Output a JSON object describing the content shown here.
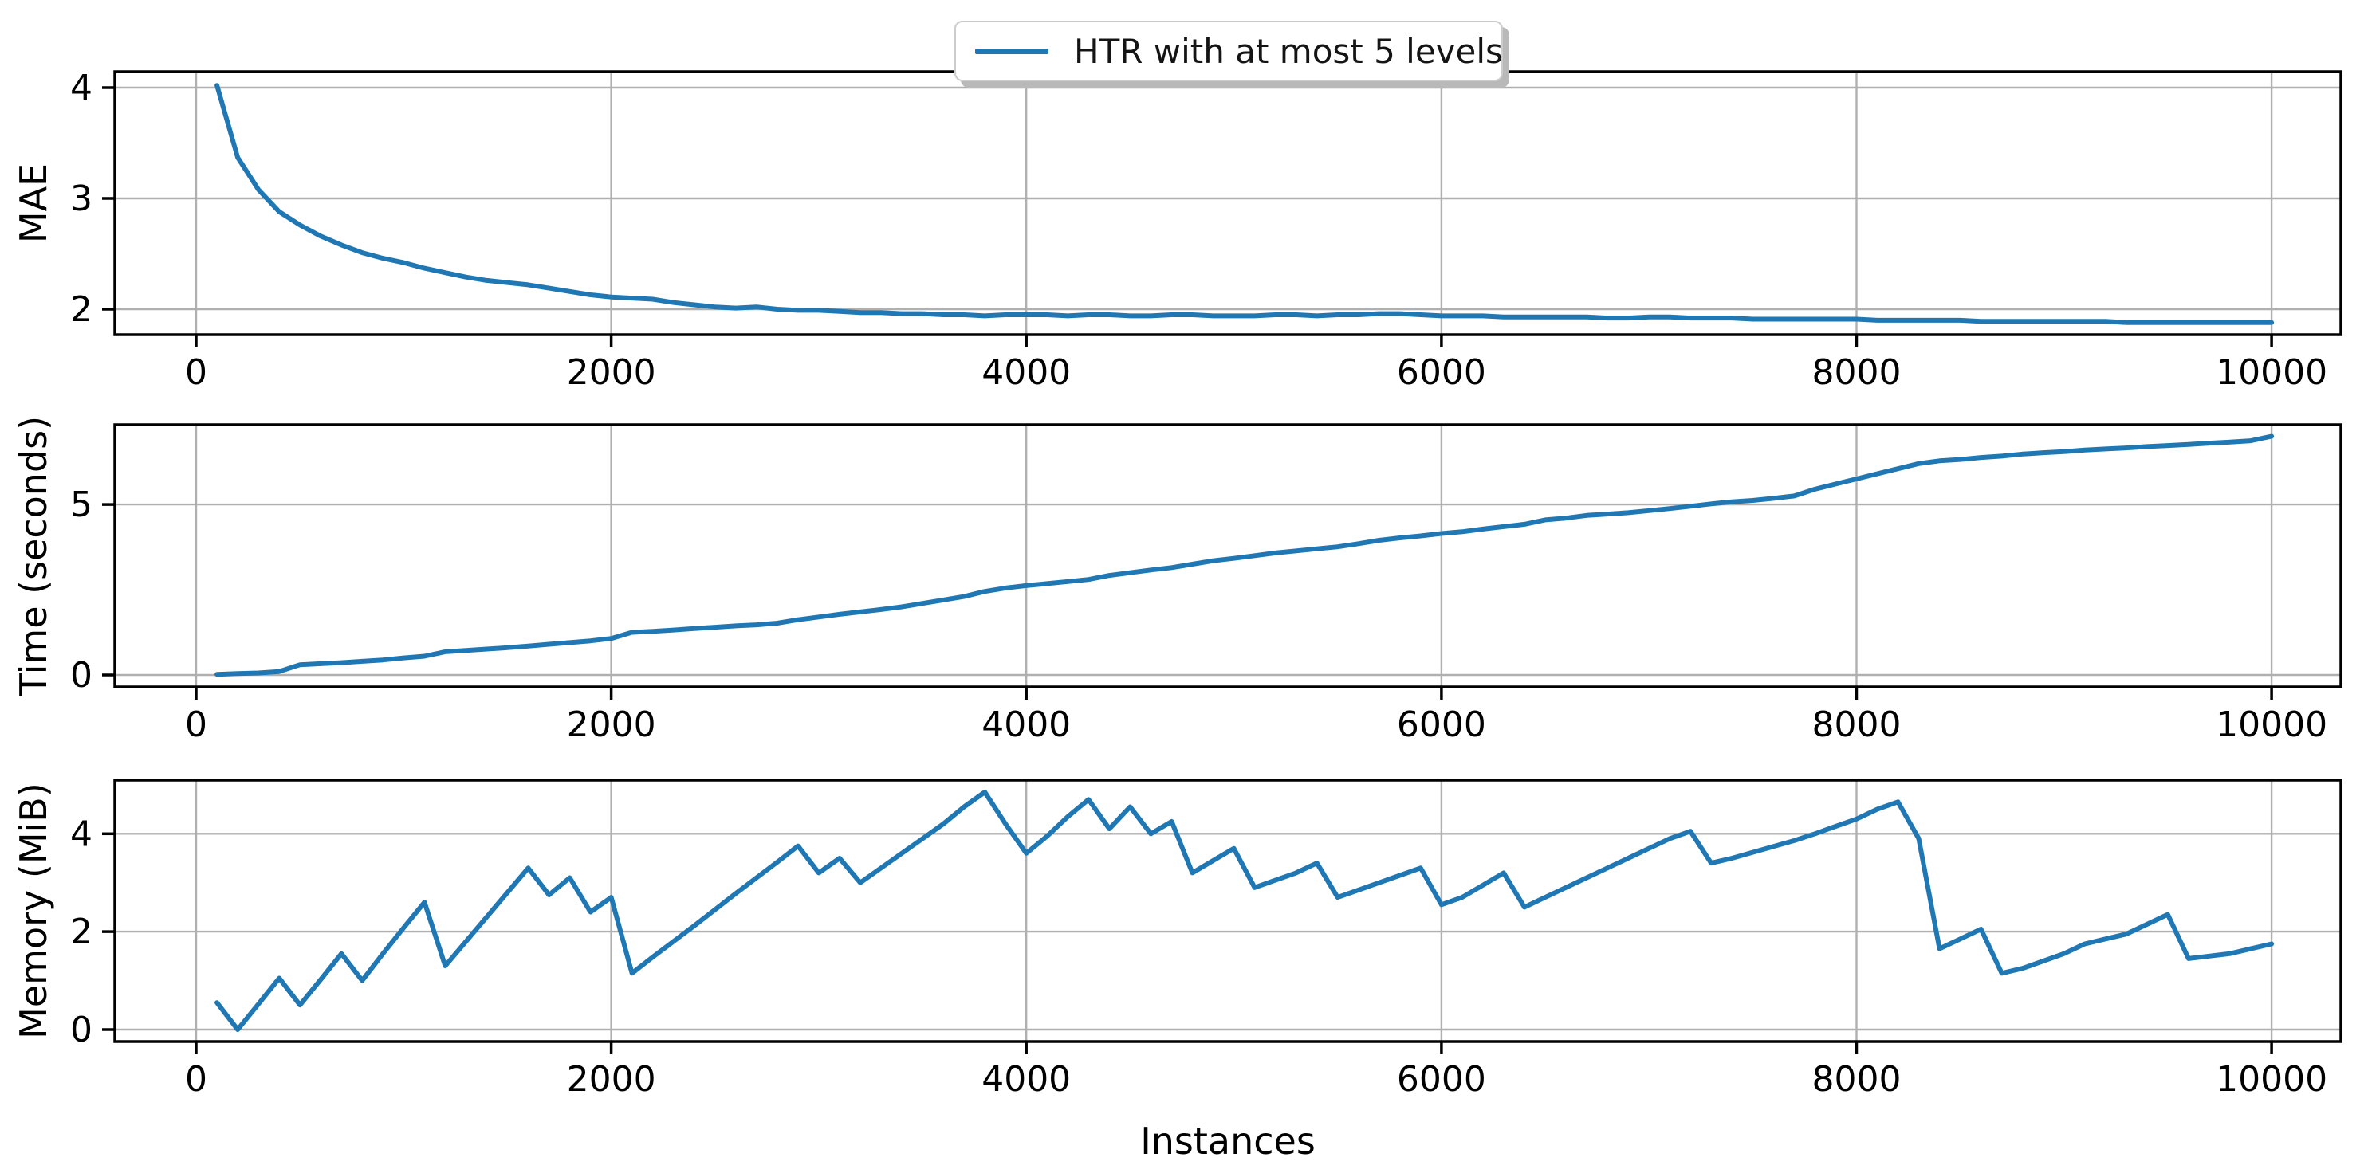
{
  "figure": {
    "xlabel": "Instances",
    "background": "#ffffff",
    "legend": {
      "label": "HTR with at most 5 levels"
    },
    "colors": {
      "line": "#1f77b4",
      "grid": "#b0b0b0",
      "spine": "#000000",
      "tick_text": "#000000",
      "legend_border": "#cccccc",
      "legend_shadow": "#b9b9b9"
    }
  },
  "chart_data": [
    {
      "type": "line",
      "ylabel": "MAE",
      "legend_entry": "HTR with at most 5 levels",
      "grid": true,
      "xticks": [
        0,
        2000,
        4000,
        6000,
        8000,
        10000
      ],
      "yticks": [
        2,
        3,
        4
      ],
      "xlim": [
        -392,
        10334
      ],
      "ylim": [
        1.77,
        4.144
      ],
      "x": [
        100,
        200,
        300,
        400,
        500,
        600,
        700,
        800,
        900,
        1000,
        1100,
        1200,
        1300,
        1400,
        1500,
        1600,
        1700,
        1800,
        1900,
        2000,
        2100,
        2200,
        2300,
        2400,
        2500,
        2600,
        2700,
        2800,
        2900,
        3000,
        3100,
        3200,
        3300,
        3400,
        3500,
        3600,
        3700,
        3800,
        3900,
        4000,
        4100,
        4200,
        4300,
        4400,
        4500,
        4600,
        4700,
        4800,
        4900,
        5000,
        5100,
        5200,
        5300,
        5400,
        5500,
        5600,
        5700,
        5800,
        5900,
        6000,
        6100,
        6200,
        6300,
        6400,
        6500,
        6600,
        6700,
        6800,
        6900,
        7000,
        7100,
        7200,
        7300,
        7400,
        7500,
        7600,
        7700,
        7800,
        7900,
        8000,
        8100,
        8200,
        8300,
        8400,
        8500,
        8600,
        8700,
        8800,
        8900,
        9000,
        9100,
        9200,
        9300,
        9400,
        9500,
        9600,
        9700,
        9800,
        9900,
        10000
      ],
      "values": [
        4.02,
        3.37,
        3.08,
        2.88,
        2.76,
        2.66,
        2.58,
        2.51,
        2.46,
        2.42,
        2.37,
        2.33,
        2.29,
        2.26,
        2.24,
        2.22,
        2.19,
        2.16,
        2.13,
        2.11,
        2.1,
        2.09,
        2.06,
        2.04,
        2.02,
        2.01,
        2.02,
        2.0,
        1.99,
        1.99,
        1.98,
        1.97,
        1.97,
        1.96,
        1.96,
        1.95,
        1.95,
        1.94,
        1.95,
        1.95,
        1.95,
        1.94,
        1.95,
        1.95,
        1.94,
        1.94,
        1.95,
        1.95,
        1.94,
        1.94,
        1.94,
        1.95,
        1.95,
        1.94,
        1.95,
        1.95,
        1.96,
        1.96,
        1.95,
        1.94,
        1.94,
        1.94,
        1.93,
        1.93,
        1.93,
        1.93,
        1.93,
        1.92,
        1.92,
        1.93,
        1.93,
        1.92,
        1.92,
        1.92,
        1.91,
        1.91,
        1.91,
        1.91,
        1.91,
        1.91,
        1.9,
        1.9,
        1.9,
        1.9,
        1.9,
        1.89,
        1.89,
        1.89,
        1.89,
        1.89,
        1.89,
        1.89,
        1.88,
        1.88,
        1.88,
        1.88,
        1.88,
        1.88,
        1.88,
        1.88
      ]
    },
    {
      "type": "line",
      "ylabel": "Time (seconds)",
      "grid": true,
      "xticks": [
        0,
        2000,
        4000,
        6000,
        8000,
        10000
      ],
      "yticks": [
        0,
        5
      ],
      "xlim": [
        -392,
        10334
      ],
      "ylim": [
        -0.35,
        7.34
      ],
      "x": [
        100,
        200,
        300,
        400,
        500,
        600,
        700,
        800,
        900,
        1000,
        1100,
        1200,
        1300,
        1400,
        1500,
        1600,
        1700,
        1800,
        1900,
        2000,
        2100,
        2200,
        2300,
        2400,
        2500,
        2600,
        2700,
        2800,
        2900,
        3000,
        3100,
        3200,
        3300,
        3400,
        3500,
        3600,
        3700,
        3800,
        3900,
        4000,
        4100,
        4200,
        4300,
        4400,
        4500,
        4600,
        4700,
        4800,
        4900,
        5000,
        5100,
        5200,
        5300,
        5400,
        5500,
        5600,
        5700,
        5800,
        5900,
        6000,
        6100,
        6200,
        6300,
        6400,
        6500,
        6600,
        6700,
        6800,
        6900,
        7000,
        7100,
        7200,
        7300,
        7400,
        7500,
        7600,
        7700,
        7800,
        7900,
        8000,
        8100,
        8200,
        8300,
        8400,
        8500,
        8600,
        8700,
        8800,
        8900,
        9000,
        9100,
        9200,
        9300,
        9400,
        9500,
        9600,
        9700,
        9800,
        9900,
        10000
      ],
      "values": [
        0.02,
        0.04,
        0.06,
        0.1,
        0.3,
        0.33,
        0.36,
        0.4,
        0.44,
        0.5,
        0.55,
        0.68,
        0.72,
        0.76,
        0.8,
        0.85,
        0.9,
        0.95,
        1.0,
        1.07,
        1.25,
        1.28,
        1.32,
        1.36,
        1.4,
        1.44,
        1.47,
        1.52,
        1.62,
        1.7,
        1.78,
        1.85,
        1.92,
        2.0,
        2.1,
        2.2,
        2.3,
        2.45,
        2.55,
        2.62,
        2.68,
        2.74,
        2.8,
        2.92,
        3.0,
        3.08,
        3.15,
        3.25,
        3.35,
        3.42,
        3.5,
        3.58,
        3.64,
        3.7,
        3.76,
        3.85,
        3.95,
        4.02,
        4.08,
        4.15,
        4.2,
        4.28,
        4.35,
        4.42,
        4.55,
        4.6,
        4.68,
        4.72,
        4.76,
        4.82,
        4.88,
        4.95,
        5.02,
        5.08,
        5.12,
        5.18,
        5.25,
        5.45,
        5.6,
        5.75,
        5.9,
        6.05,
        6.2,
        6.28,
        6.32,
        6.38,
        6.42,
        6.48,
        6.52,
        6.55,
        6.6,
        6.63,
        6.66,
        6.7,
        6.73,
        6.76,
        6.8,
        6.83,
        6.87,
        7.0
      ]
    },
    {
      "type": "line",
      "ylabel": "Memory (MiB)",
      "xlabel": "Instances",
      "grid": true,
      "xticks": [
        0,
        2000,
        4000,
        6000,
        8000,
        10000
      ],
      "yticks": [
        0,
        2,
        4
      ],
      "xlim": [
        -392,
        10334
      ],
      "ylim": [
        -0.245,
        5.095
      ],
      "x": [
        100,
        200,
        300,
        400,
        500,
        600,
        700,
        800,
        900,
        1000,
        1100,
        1200,
        1300,
        1400,
        1500,
        1600,
        1700,
        1800,
        1900,
        2000,
        2100,
        2200,
        2300,
        2400,
        2500,
        2600,
        2700,
        2800,
        2900,
        3000,
        3100,
        3200,
        3300,
        3400,
        3500,
        3600,
        3700,
        3800,
        3900,
        4000,
        4100,
        4200,
        4300,
        4400,
        4500,
        4600,
        4700,
        4800,
        4900,
        5000,
        5100,
        5200,
        5300,
        5400,
        5500,
        5600,
        5700,
        5800,
        5900,
        6000,
        6100,
        6200,
        6300,
        6400,
        6500,
        6600,
        6700,
        6800,
        6900,
        7000,
        7100,
        7200,
        7300,
        7400,
        7500,
        7600,
        7700,
        7800,
        7900,
        8000,
        8100,
        8200,
        8300,
        8400,
        8500,
        8600,
        8700,
        8800,
        8900,
        9000,
        9100,
        9200,
        9300,
        9400,
        9500,
        9600,
        9700,
        9800,
        9900,
        10000
      ],
      "values": [
        0.55,
        0.0,
        0.52,
        1.05,
        0.5,
        1.02,
        1.55,
        1.0,
        1.55,
        2.08,
        2.6,
        1.3,
        1.8,
        2.3,
        2.8,
        3.3,
        2.75,
        3.1,
        2.4,
        2.7,
        1.15,
        1.48,
        1.8,
        2.12,
        2.45,
        2.78,
        3.1,
        3.42,
        3.75,
        3.2,
        3.5,
        3.0,
        3.3,
        3.6,
        3.9,
        4.2,
        4.55,
        4.85,
        4.2,
        3.6,
        3.95,
        4.35,
        4.7,
        4.1,
        4.55,
        4.0,
        4.25,
        3.2,
        3.45,
        3.7,
        2.9,
        3.05,
        3.2,
        3.4,
        2.7,
        2.85,
        3.0,
        3.15,
        3.3,
        2.55,
        2.7,
        2.95,
        3.2,
        2.5,
        2.7,
        2.9,
        3.1,
        3.3,
        3.5,
        3.7,
        3.9,
        4.05,
        3.4,
        3.5,
        3.62,
        3.74,
        3.86,
        4.0,
        4.15,
        4.3,
        4.5,
        4.65,
        3.9,
        1.65,
        1.85,
        2.05,
        1.15,
        1.25,
        1.4,
        1.55,
        1.75,
        1.85,
        1.95,
        2.15,
        2.35,
        1.45,
        1.5,
        1.55,
        1.65,
        1.75
      ]
    }
  ]
}
